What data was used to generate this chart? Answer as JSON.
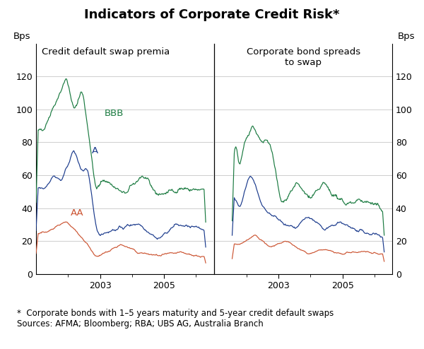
{
  "title": "Indicators of Corporate Credit Risk*",
  "left_panel_title": "Credit default swap premia",
  "right_panel_title": "Corporate bond spreads\nto swap",
  "ylabel": "Bps",
  "footnote": "*  Corporate bonds with 1–5 years maturity and 5-year credit default swaps\nSources: AFMA; Bloomberg; RBA; UBS AG, Australia Branch",
  "ylim": [
    0,
    140
  ],
  "yticks": [
    0,
    20,
    40,
    60,
    80,
    100,
    120
  ],
  "color_bbb": "#1a7a40",
  "color_a": "#1a3a8c",
  "color_aa": "#cc5533",
  "title_fontsize": 13,
  "panel_title_fontsize": 9.5,
  "label_fontsize": 9.5,
  "tick_fontsize": 9,
  "footnote_fontsize": 8.5,
  "background_color": "#FFFFFF",
  "grid_color": "#bbbbbb"
}
